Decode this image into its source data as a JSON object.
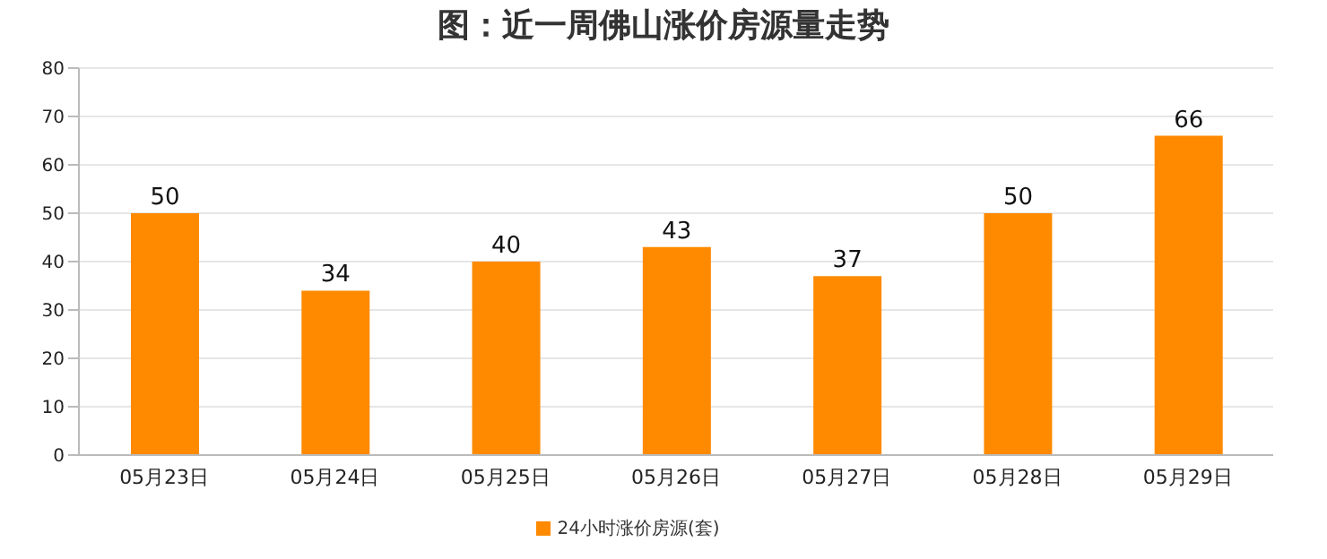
{
  "chart_data": {
    "type": "bar",
    "title": "图：近一周佛山涨价房源量走势",
    "categories": [
      "05月23日",
      "05月24日",
      "05月25日",
      "05月26日",
      "05月27日",
      "05月28日",
      "05月29日"
    ],
    "series": [
      {
        "name": "24小时涨价房源(套)",
        "color": "#ff8a00",
        "values": [
          50,
          34,
          40,
          43,
          37,
          50,
          66
        ]
      }
    ],
    "ylim": [
      0,
      80
    ],
    "yticks": [
      0,
      10,
      20,
      30,
      40,
      50,
      60,
      70,
      80
    ],
    "grid": "y",
    "legend": "bottom",
    "data_labels": true
  }
}
